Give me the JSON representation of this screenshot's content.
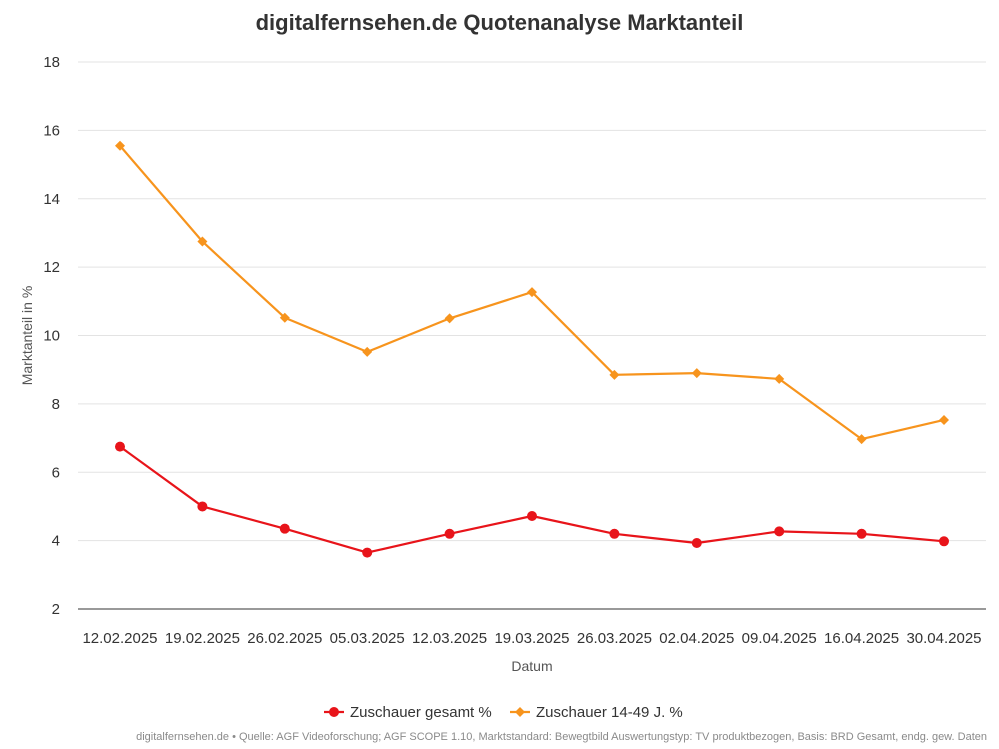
{
  "chart_data": {
    "type": "line",
    "title": "digitalfernsehen.de Quotenanalyse Marktanteil",
    "xlabel": "Datum",
    "ylabel": "Marktanteil in %",
    "ylim": [
      2,
      18
    ],
    "yticks": [
      2,
      4,
      6,
      8,
      10,
      12,
      14,
      16,
      18
    ],
    "categories": [
      "12.02.2025",
      "19.02.2025",
      "26.02.2025",
      "05.03.2025",
      "12.03.2025",
      "19.03.2025",
      "26.03.2025",
      "02.04.2025",
      "09.04.2025",
      "16.04.2025",
      "30.04.2025"
    ],
    "series": [
      {
        "name": "Zuschauer gesamt %",
        "color": "#e8141a",
        "marker": "circle",
        "values": [
          6.75,
          5.0,
          4.35,
          3.65,
          4.2,
          4.72,
          4.2,
          3.93,
          4.27,
          4.2,
          3.98
        ]
      },
      {
        "name": "Zuschauer 14-49 J. %",
        "color": "#f7941d",
        "marker": "diamond",
        "values": [
          15.55,
          12.75,
          10.52,
          9.52,
          10.5,
          11.27,
          8.85,
          8.9,
          8.73,
          6.97,
          7.53
        ]
      }
    ],
    "grid": true,
    "legend_position": "bottom-center"
  },
  "footer": "digitalfernsehen.de • Quelle: AGF Videoforschung; AGF SCOPE 1.10, Marktstandard: Bewegtbild Auswertungstyp: TV produktbezogen, Basis: BRD Gesamt, endg. gew. Daten"
}
